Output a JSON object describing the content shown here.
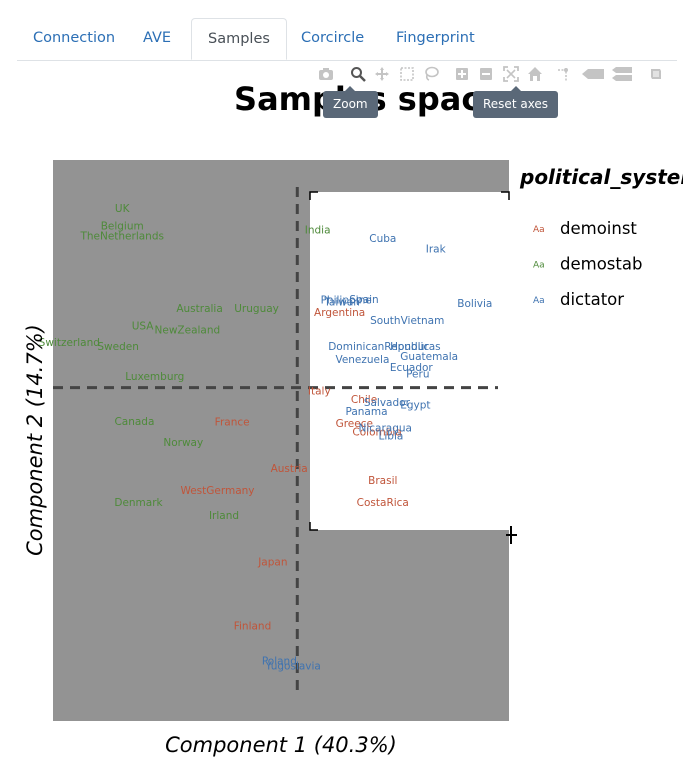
{
  "tabs": [
    {
      "label": "Connection",
      "active": false
    },
    {
      "label": "AVE",
      "active": false
    },
    {
      "label": "Samples",
      "active": true
    },
    {
      "label": "Corcircle",
      "active": false
    },
    {
      "label": "Fingerprint",
      "active": false
    }
  ],
  "modebar": {
    "buttons": [
      "camera-icon",
      "zoom-icon",
      "pan-icon",
      "box-select-icon",
      "lasso-icon",
      "zoom-in-icon",
      "zoom-out-icon",
      "autoscale-icon",
      "home-icon",
      "spike-lines-icon",
      "hover-closest-icon",
      "hover-compare-icon",
      "plotly-logo-icon"
    ],
    "active": "zoom-icon",
    "tooltips": {
      "zoom": "Zoom",
      "reset": "Reset axes"
    }
  },
  "chart_data": {
    "type": "scatter",
    "title": "Samples space",
    "xlabel": "Component 1 (40.3%)",
    "ylabel": "Component 2 (14.7%)",
    "xlim": [
      -3.0,
      2.6
    ],
    "ylim": [
      -4.1,
      2.8
    ],
    "grid": false,
    "legend_title": "political_system",
    "legend_position": "right",
    "colors": {
      "demoinst": "#c0553a",
      "demostab": "#4e8a3a",
      "dictator": "#3f73b0"
    },
    "series": [
      {
        "name": "demoinst",
        "points": [
          {
            "label": "Argentina",
            "x": 0.52,
            "y": 0.92
          },
          {
            "label": "Italy",
            "x": 0.27,
            "y": -0.05
          },
          {
            "label": "Chile",
            "x": 0.82,
            "y": -0.15
          },
          {
            "label": "Greece",
            "x": 0.7,
            "y": -0.45
          },
          {
            "label": "Colombia",
            "x": 0.98,
            "y": -0.55
          },
          {
            "label": "France",
            "x": -0.8,
            "y": -0.43
          },
          {
            "label": "Austria",
            "x": -0.1,
            "y": -1.0
          },
          {
            "label": "WestGermany",
            "x": -0.98,
            "y": -1.27
          },
          {
            "label": "Brasil",
            "x": 1.05,
            "y": -1.15
          },
          {
            "label": "CostaRica",
            "x": 1.05,
            "y": -1.42
          },
          {
            "label": "Japan",
            "x": -0.3,
            "y": -2.15
          },
          {
            "label": "Finland",
            "x": -0.55,
            "y": -2.94
          }
        ]
      },
      {
        "name": "demostab",
        "points": [
          {
            "label": "UK",
            "x": -2.15,
            "y": 2.2
          },
          {
            "label": "Belgium",
            "x": -2.15,
            "y": 1.98
          },
          {
            "label": "TheNetherlands",
            "x": -2.15,
            "y": 1.86
          },
          {
            "label": "India",
            "x": 0.25,
            "y": 1.93
          },
          {
            "label": "Australia",
            "x": -1.2,
            "y": 0.97
          },
          {
            "label": "Uruguay",
            "x": -0.5,
            "y": 0.97
          },
          {
            "label": "USA",
            "x": -1.9,
            "y": 0.75
          },
          {
            "label": "NewZealand",
            "x": -1.35,
            "y": 0.7
          },
          {
            "label": "Switzerland",
            "x": -2.8,
            "y": 0.55
          },
          {
            "label": "Sweden",
            "x": -2.2,
            "y": 0.5
          },
          {
            "label": "Luxemburg",
            "x": -1.75,
            "y": 0.13
          },
          {
            "label": "Canada",
            "x": -2.0,
            "y": -0.42
          },
          {
            "label": "Norway",
            "x": -1.4,
            "y": -0.68
          },
          {
            "label": "Denmark",
            "x": -1.95,
            "y": -1.42
          },
          {
            "label": "Irland",
            "x": -0.9,
            "y": -1.58
          }
        ]
      },
      {
        "name": "dictator",
        "points": [
          {
            "label": "Cuba",
            "x": 1.05,
            "y": 1.83
          },
          {
            "label": "Irak",
            "x": 1.7,
            "y": 1.7
          },
          {
            "label": "Taiwan",
            "x": 0.55,
            "y": 1.05
          },
          {
            "label": "Philippine",
            "x": 0.6,
            "y": 1.07
          },
          {
            "label": "Spain",
            "x": 0.82,
            "y": 1.08
          },
          {
            "label": "Bolivia",
            "x": 2.18,
            "y": 1.03
          },
          {
            "label": "SouthVietnam",
            "x": 1.35,
            "y": 0.82
          },
          {
            "label": "DominicanRepublic",
            "x": 1.0,
            "y": 0.5
          },
          {
            "label": "Honduras",
            "x": 1.45,
            "y": 0.5
          },
          {
            "label": "Venezuela",
            "x": 0.8,
            "y": 0.34
          },
          {
            "label": "Guatemala",
            "x": 1.62,
            "y": 0.38
          },
          {
            "label": "Ecuador",
            "x": 1.4,
            "y": 0.24
          },
          {
            "label": "Peru",
            "x": 1.48,
            "y": 0.16
          },
          {
            "label": "Salvador",
            "x": 1.1,
            "y": -0.19
          },
          {
            "label": "Egypt",
            "x": 1.45,
            "y": -0.22
          },
          {
            "label": "Panama",
            "x": 0.85,
            "y": -0.3
          },
          {
            "label": "Nicaragua",
            "x": 1.08,
            "y": -0.5
          },
          {
            "label": "Libia",
            "x": 1.15,
            "y": -0.6
          },
          {
            "label": "Poland",
            "x": -0.22,
            "y": -3.37
          },
          {
            "label": "Yugoslavia",
            "x": -0.05,
            "y": -3.43
          }
        ]
      }
    ]
  }
}
